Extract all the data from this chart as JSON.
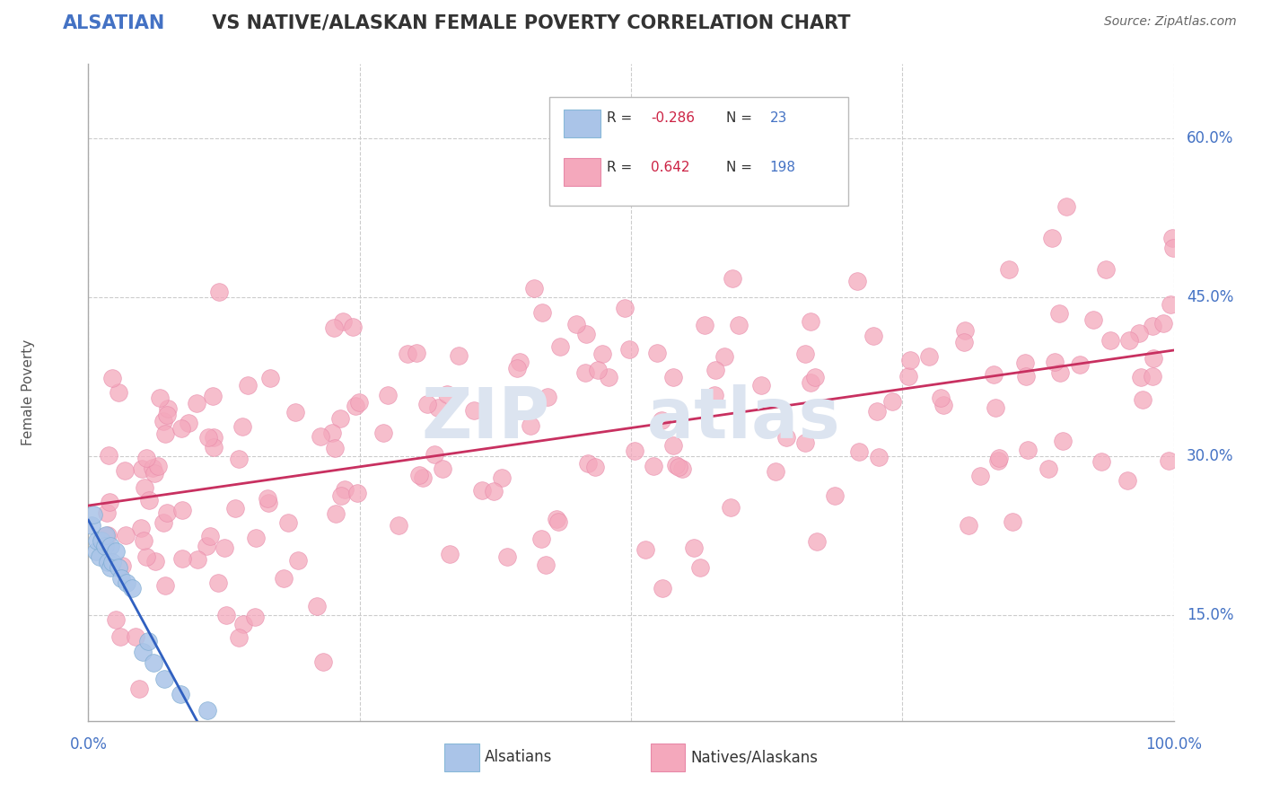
{
  "title_blue": "ALSATIAN",
  "title_rest": " VS NATIVE/ALASKAN FEMALE POVERTY CORRELATION CHART",
  "source": "Source: ZipAtlas.com",
  "ylabel": "Female Poverty",
  "r_alsatian": -0.286,
  "n_alsatian": 23,
  "r_native": 0.642,
  "n_native": 198,
  "legend_label_1": "Alsatians",
  "legend_label_2": "Natives/Alaskans",
  "alsatian_color": "#aac4e8",
  "native_color": "#f4a8bc",
  "alsatian_line_color": "#3060c0",
  "native_line_color": "#c83060",
  "background_color": "#ffffff",
  "title_blue_color": "#4472c4",
  "title_dark_color": "#333333",
  "tick_label_color": "#4472c4",
  "ytick_vals": [
    0.15,
    0.3,
    0.45,
    0.6
  ],
  "ytick_labels": [
    "15.0%",
    "30.0%",
    "45.0%",
    "60.0%"
  ],
  "xmin": 0.0,
  "xmax": 1.0,
  "ymin": 0.05,
  "ymax": 0.67,
  "grid_color": "#cccccc",
  "watermark_color": "#dce4f0"
}
